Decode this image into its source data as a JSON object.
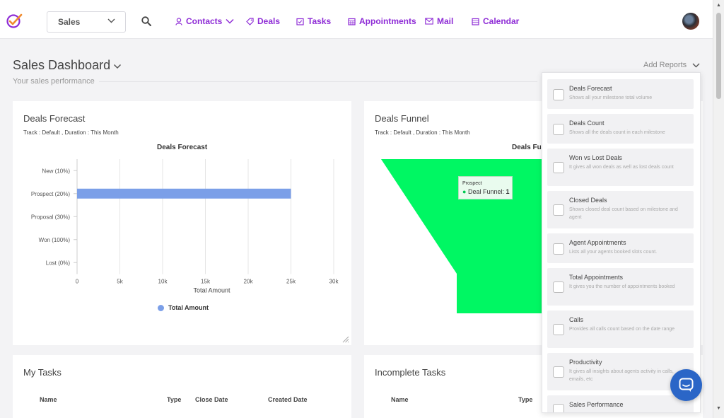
{
  "nav": {
    "app_selector": "Sales",
    "items": [
      {
        "label": "Contacts",
        "icon": "user-icon"
      },
      {
        "label": "Deals",
        "icon": "tag-icon"
      },
      {
        "label": "Tasks",
        "icon": "task-icon"
      },
      {
        "label": "Appointments",
        "icon": "calendar-grid-icon"
      },
      {
        "label": "Mail",
        "icon": "mail-icon"
      },
      {
        "label": "Calendar",
        "icon": "calendar-icon"
      }
    ]
  },
  "header": {
    "title": "Sales Dashboard",
    "subtitle": "Your sales performance",
    "add_reports": "Add Reports"
  },
  "cards": {
    "deals_forecast": {
      "title": "Deals Forecast",
      "meta": "Track : Default ,  Duration : This Month"
    },
    "deals_funnel": {
      "title": "Deals Funnel",
      "meta": "Track : Default ,  Duration : This Month",
      "chart_title": "Deals Funnel",
      "tooltip_stage": "Prospect",
      "tooltip_series": "Deal Funnel:",
      "tooltip_value": "1"
    },
    "my_tasks": {
      "title": "My Tasks",
      "columns": [
        "Name",
        "Type",
        "Close Date",
        "Created Date"
      ]
    },
    "incomplete_tasks": {
      "title": "Incomplete Tasks",
      "columns": [
        "Name",
        "Type"
      ]
    }
  },
  "chart_data": [
    {
      "type": "bar",
      "orientation": "horizontal",
      "title": "Deals Forecast",
      "categories": [
        "New (10%)",
        "Prospect (20%)",
        "Proposal (30%)",
        "Won (100%)",
        "Lost (0%)"
      ],
      "series": [
        {
          "name": "Total Amount",
          "values": [
            0,
            25000,
            0,
            0,
            0
          ],
          "color": "#7b9fe8"
        }
      ],
      "xlabel": "Total Amount",
      "xticks": [
        "0",
        "5k",
        "10k",
        "15k",
        "20k",
        "25k",
        "30k"
      ],
      "xlim": [
        0,
        30000
      ],
      "grid": true,
      "legend": "bottom"
    },
    {
      "type": "funnel",
      "title": "Deals Funnel",
      "categories": [
        "Prospect"
      ],
      "series": [
        {
          "name": "Deal Funnel",
          "values": [
            1
          ],
          "color": "#00f763"
        }
      ]
    }
  ],
  "reports": [
    {
      "name": "Deals Forecast",
      "desc": "Shows all your milestone total volume"
    },
    {
      "name": "Deals Count",
      "desc": "Shows all the deals count in each milestone"
    },
    {
      "name": "Won vs Lost Deals",
      "desc": "It gives all won deals as well as lost deals count"
    },
    {
      "name": "Closed Deals",
      "desc": "Shows closed deal count based on milestone and agent"
    },
    {
      "name": "Agent Appointments",
      "desc": "Lists all your agents booked slots count."
    },
    {
      "name": "Total Appointments",
      "desc": "It gives you the number of appointments booked"
    },
    {
      "name": "Calls",
      "desc": "Provides all calls count based on the date range"
    },
    {
      "name": "Productivity",
      "desc": "It gives all insights about agents activity in calls, emails, etc"
    },
    {
      "name": "Sales Performance",
      "desc": ""
    }
  ],
  "colors": {
    "accent": "#8e2cd6",
    "bar": "#7b9fe8",
    "funnel": "#00f763",
    "chat": "#2b66c7"
  }
}
